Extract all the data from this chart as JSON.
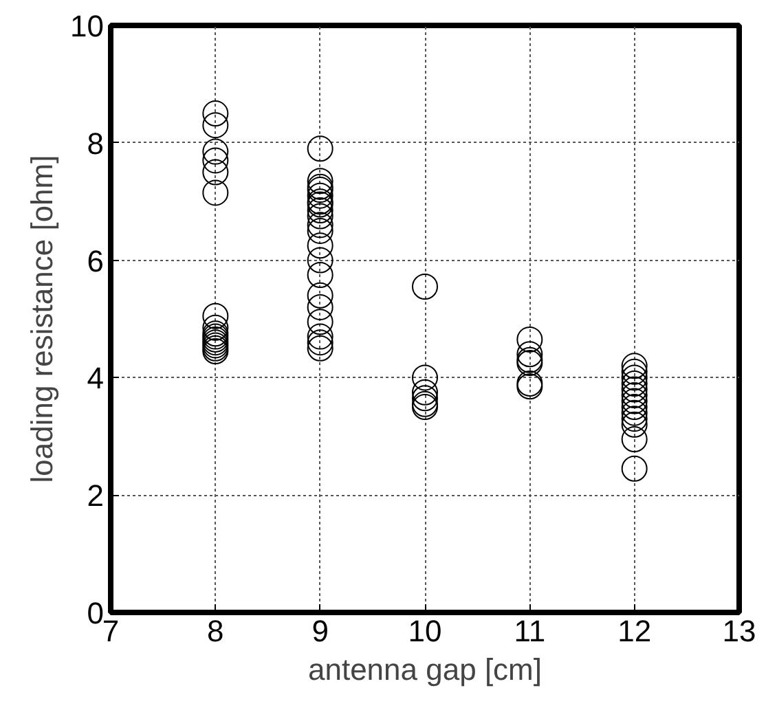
{
  "chart_data": {
    "type": "scatter",
    "xlabel": "antenna gap [cm]",
    "ylabel": "loading resistance [ohm]",
    "xlim": [
      7,
      13
    ],
    "xticks": [
      7,
      8,
      9,
      10,
      11,
      12,
      13
    ],
    "ylim": [
      0,
      10
    ],
    "yticks": [
      0,
      2,
      4,
      6,
      8,
      10
    ],
    "grid": true,
    "marker": "circle",
    "series": [
      {
        "color": "#000000",
        "x": [
          8,
          8,
          8,
          8,
          8,
          8,
          8,
          8,
          8,
          8,
          8,
          8,
          8,
          8,
          8,
          9,
          9,
          9,
          9,
          9,
          9,
          9,
          9,
          9,
          9,
          9,
          9,
          9,
          9,
          9,
          9,
          9,
          9,
          9,
          9,
          10,
          10,
          10,
          10,
          10,
          10,
          11,
          11,
          11,
          11,
          11,
          11,
          12,
          12,
          12,
          12,
          12,
          12,
          12,
          12,
          12,
          12,
          12,
          12,
          12
        ],
        "values": [
          8.5,
          8.3,
          7.85,
          7.7,
          7.5,
          7.15,
          5.05,
          4.85,
          4.75,
          4.7,
          4.65,
          4.6,
          4.55,
          4.5,
          4.45,
          7.9,
          7.35,
          7.25,
          7.2,
          7.1,
          7.0,
          6.95,
          6.85,
          6.75,
          6.6,
          6.5,
          6.25,
          6.0,
          5.75,
          5.4,
          5.2,
          4.95,
          4.7,
          4.6,
          4.5,
          5.55,
          4.0,
          3.75,
          3.65,
          3.55,
          3.5,
          4.65,
          4.4,
          4.3,
          4.25,
          3.9,
          3.85,
          4.2,
          4.1,
          4.0,
          3.9,
          3.8,
          3.7,
          3.6,
          3.5,
          3.4,
          3.3,
          3.2,
          2.95,
          2.45
        ]
      }
    ]
  }
}
